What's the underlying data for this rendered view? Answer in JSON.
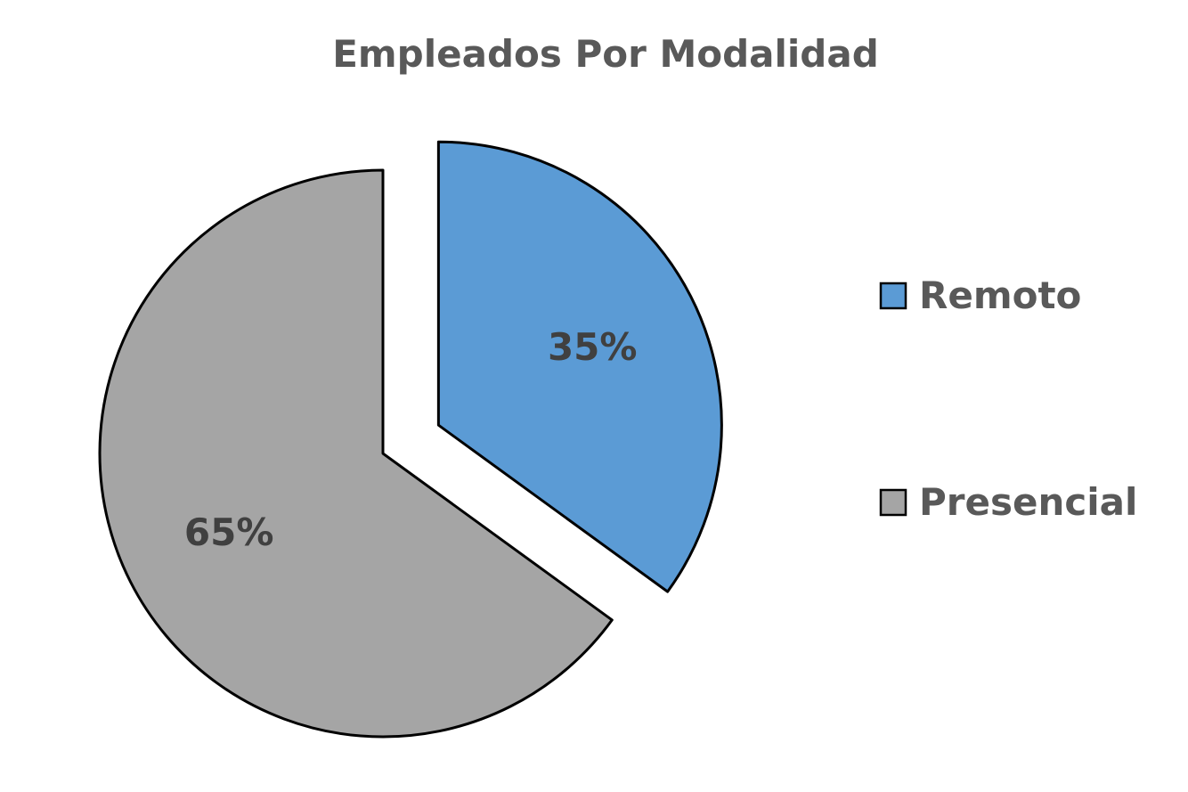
{
  "chart_data": {
    "type": "pie",
    "title": "Empleados Por Modalidad",
    "categories": [
      "Remoto",
      "Presencial"
    ],
    "values": [
      35,
      65
    ],
    "labels": [
      "35%",
      "65%"
    ],
    "colors": [
      "#5B9BD5",
      "#A5A5A5"
    ],
    "exploded": [
      "Remoto"
    ],
    "legend_position": "right"
  }
}
